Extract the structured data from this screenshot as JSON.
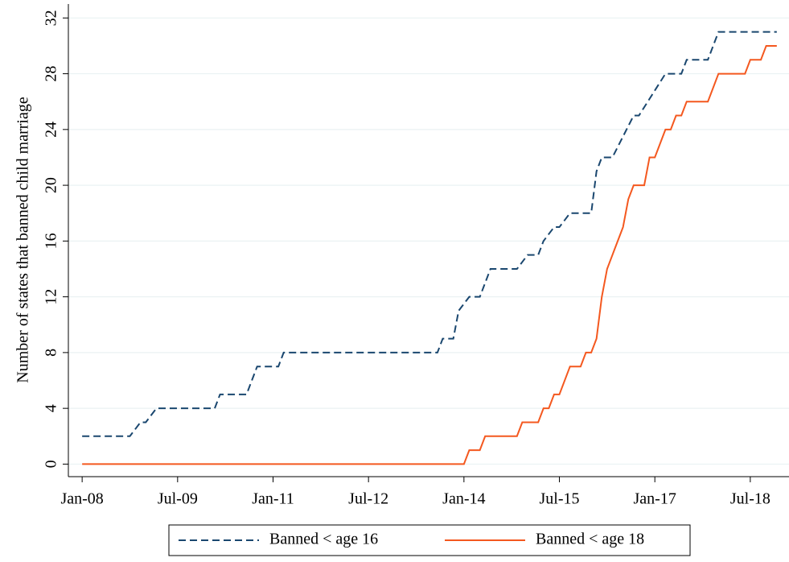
{
  "chart_data": {
    "type": "line",
    "y_label": "Number of states that banned child marriage",
    "xlim": [
      -2.6,
      133.3
    ],
    "ylim": [
      -0.9,
      33
    ],
    "xticks": [
      {
        "value": 0,
        "label": "Jan-08"
      },
      {
        "value": 18,
        "label": "Jul-09"
      },
      {
        "value": 36,
        "label": "Jan-11"
      },
      {
        "value": 54,
        "label": "Jul-12"
      },
      {
        "value": 72,
        "label": "Jan-14"
      },
      {
        "value": 90,
        "label": "Jul-15"
      },
      {
        "value": 108,
        "label": "Jan-17"
      },
      {
        "value": 126,
        "label": "Jul-18"
      }
    ],
    "yticks": [
      0,
      4,
      8,
      12,
      16,
      20,
      24,
      28,
      32
    ],
    "grid": true,
    "legend": "bottom",
    "series": [
      {
        "name": "Banned < age 16",
        "color": "#1a476f",
        "dash": true,
        "x": [
          0,
          9,
          11,
          12,
          14,
          25,
          26,
          31,
          33,
          37,
          38,
          67,
          68,
          70,
          71,
          73,
          75,
          77,
          82,
          84,
          86,
          87,
          89,
          90,
          92,
          96,
          97,
          98,
          100,
          104,
          105,
          110,
          113,
          114,
          118,
          120,
          131
        ],
        "values": [
          2,
          2,
          3,
          3,
          4,
          4,
          5,
          5,
          7,
          7,
          8,
          8,
          9,
          9,
          11,
          12,
          12,
          14,
          14,
          15,
          15,
          16,
          17,
          17,
          18,
          18,
          21,
          22,
          22,
          25,
          25,
          28,
          28,
          29,
          29,
          31,
          31
        ]
      },
      {
        "name": "Banned < age 18",
        "color": "#f4581f",
        "dash": false,
        "x": [
          0,
          72,
          73,
          75,
          76,
          82,
          83,
          86,
          87,
          88,
          89,
          90,
          92,
          94,
          95,
          96,
          97,
          98,
          99,
          100,
          101,
          102,
          103,
          104,
          106,
          107,
          108,
          110,
          111,
          112,
          113,
          114,
          118,
          120,
          125,
          126,
          128,
          129,
          131
        ],
        "values": [
          0,
          0,
          1,
          1,
          2,
          2,
          3,
          3,
          4,
          4,
          5,
          5,
          7,
          7,
          8,
          8,
          9,
          12,
          14,
          15,
          16,
          17,
          19,
          20,
          20,
          22,
          22,
          24,
          24,
          25,
          25,
          26,
          26,
          28,
          28,
          29,
          29,
          30,
          30
        ]
      }
    ]
  }
}
